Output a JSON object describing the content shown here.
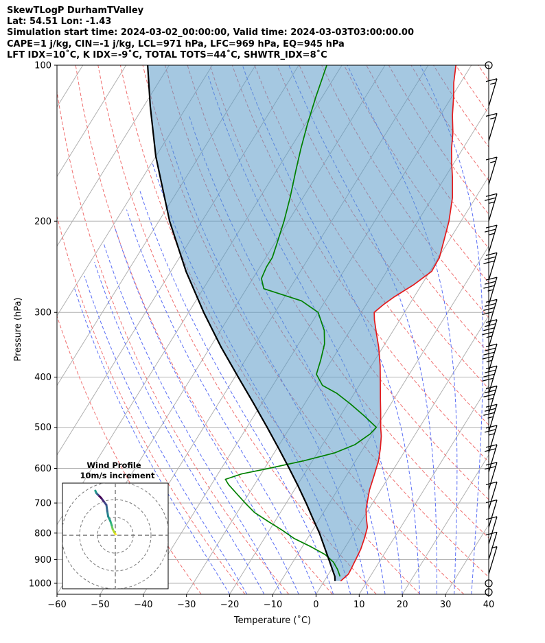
{
  "header": {
    "line1": "SkewTLogP DurhamTValley",
    "line2": "Lat: 54.51   Lon: -1.43",
    "line3": "Simulation start time: 2024-03-02_00:00:00, Valid time: 2024-03-03T03:00:00.00",
    "line4": "CAPE=1 j/kg, CIN=-1 j/kg, LCL=971 hPa, LFC=969 hPa, EQ=945 hPa",
    "line5": "LFT IDX=10˚C, K IDX=-9˚C, TOTAL TOTS=44˚C, SHWTR_IDX=8˚C"
  },
  "chart_data": {
    "type": "skewt",
    "xlabel": "Temperature (˚C)",
    "ylabel": "Pressure (hPa)",
    "xlim": [
      -60,
      40
    ],
    "ylim": [
      1050,
      100
    ],
    "x_ticks": [
      -60,
      -50,
      -40,
      -30,
      -20,
      -10,
      0,
      10,
      20,
      30,
      40
    ],
    "x_tick_labels": [
      "−60",
      "−50",
      "−40",
      "−30",
      "−20",
      "−10",
      "0",
      "10",
      "20",
      "30",
      "40"
    ],
    "y_ticks": [
      100,
      200,
      300,
      400,
      500,
      600,
      700,
      800,
      900,
      1000
    ],
    "y_tick_labels": [
      "100",
      "200",
      "300",
      "400",
      "500",
      "600",
      "700",
      "800",
      "900",
      "1000"
    ],
    "series": [
      {
        "name": "Temperature",
        "color": "#e41a1c",
        "points": [
          [
            990,
            3.8
          ],
          [
            960,
            4.6
          ],
          [
            940,
            4.5
          ],
          [
            900,
            4.2
          ],
          [
            860,
            3.9
          ],
          [
            820,
            3.2
          ],
          [
            780,
            2.3
          ],
          [
            750,
            0.8
          ],
          [
            720,
            -0.6
          ],
          [
            690,
            -1.6
          ],
          [
            660,
            -2.6
          ],
          [
            620,
            -3.6
          ],
          [
            580,
            -4.7
          ],
          [
            550,
            -6.0
          ],
          [
            520,
            -7.6
          ],
          [
            500,
            -9.0
          ],
          [
            470,
            -11.0
          ],
          [
            440,
            -13.2
          ],
          [
            410,
            -15.5
          ],
          [
            380,
            -18.0
          ],
          [
            350,
            -21.0
          ],
          [
            330,
            -23.4
          ],
          [
            310,
            -25.9
          ],
          [
            300,
            -27.0
          ],
          [
            290,
            -26.0
          ],
          [
            280,
            -24.6
          ],
          [
            265,
            -21.8
          ],
          [
            250,
            -19.6
          ],
          [
            235,
            -19.8
          ],
          [
            220,
            -21.0
          ],
          [
            200,
            -22.8
          ],
          [
            180,
            -25.4
          ],
          [
            165,
            -28.2
          ],
          [
            155,
            -30.4
          ],
          [
            145,
            -32.6
          ],
          [
            135,
            -34.6
          ],
          [
            125,
            -37.2
          ],
          [
            115,
            -39.6
          ],
          [
            108,
            -41.6
          ],
          [
            100,
            -43.6
          ]
        ]
      },
      {
        "name": "Dewpoint",
        "color": "#008000",
        "points": [
          [
            970,
            3.0
          ],
          [
            940,
            1.4
          ],
          [
            910,
            -0.6
          ],
          [
            880,
            -3.6
          ],
          [
            850,
            -8.0
          ],
          [
            820,
            -13.0
          ],
          [
            790,
            -17.0
          ],
          [
            760,
            -21.5
          ],
          [
            730,
            -26.0
          ],
          [
            700,
            -29.5
          ],
          [
            670,
            -33.0
          ],
          [
            645,
            -36.0
          ],
          [
            630,
            -37.5
          ],
          [
            615,
            -34.5
          ],
          [
            600,
            -29.0
          ],
          [
            580,
            -22.0
          ],
          [
            560,
            -16.0
          ],
          [
            540,
            -12.5
          ],
          [
            515,
            -10.5
          ],
          [
            500,
            -10.0
          ],
          [
            475,
            -14.5
          ],
          [
            450,
            -19.5
          ],
          [
            430,
            -24.0
          ],
          [
            415,
            -28.5
          ],
          [
            395,
            -31.5
          ],
          [
            370,
            -32.6
          ],
          [
            345,
            -34.0
          ],
          [
            325,
            -36.0
          ],
          [
            300,
            -40.0
          ],
          [
            285,
            -45.5
          ],
          [
            270,
            -56.0
          ],
          [
            258,
            -58.0
          ],
          [
            245,
            -58.5
          ],
          [
            235,
            -58.5
          ],
          [
            220,
            -59.5
          ],
          [
            200,
            -61.0
          ],
          [
            180,
            -63.0
          ],
          [
            160,
            -65.5
          ],
          [
            145,
            -67.5
          ],
          [
            130,
            -69.5
          ],
          [
            115,
            -71.5
          ],
          [
            100,
            -73.5
          ]
        ]
      },
      {
        "name": "Parcel",
        "color": "#000000",
        "points": [
          [
            990,
            2.5
          ],
          [
            970,
            1.8
          ],
          [
            940,
            0.2
          ],
          [
            900,
            -2.0
          ],
          [
            850,
            -4.9
          ],
          [
            800,
            -8.0
          ],
          [
            750,
            -11.6
          ],
          [
            700,
            -15.4
          ],
          [
            650,
            -19.6
          ],
          [
            600,
            -24.3
          ],
          [
            550,
            -29.5
          ],
          [
            500,
            -35.3
          ],
          [
            450,
            -41.8
          ],
          [
            400,
            -49.2
          ],
          [
            350,
            -57.5
          ],
          [
            300,
            -66.5
          ],
          [
            250,
            -76.5
          ],
          [
            200,
            -87.5
          ],
          [
            150,
            -100.0
          ],
          [
            120,
            -108.5
          ],
          [
            100,
            -115.0
          ]
        ]
      }
    ],
    "cape_cin_shading": {
      "between": [
        "Temperature",
        "Parcel"
      ],
      "color": "#5b9ac8"
    },
    "wind_barbs": [
      {
        "p": 100,
        "speed_kt": 0
      },
      {
        "p": 120,
        "speed_kt": 15
      },
      {
        "p": 140,
        "speed_kt": 15
      },
      {
        "p": 170,
        "speed_kt": 15
      },
      {
        "p": 200,
        "speed_kt": 25
      },
      {
        "p": 230,
        "speed_kt": 25
      },
      {
        "p": 260,
        "speed_kt": 30
      },
      {
        "p": 290,
        "speed_kt": 35
      },
      {
        "p": 320,
        "speed_kt": 40
      },
      {
        "p": 350,
        "speed_kt": 45
      },
      {
        "p": 390,
        "speed_kt": 45
      },
      {
        "p": 430,
        "speed_kt": 40
      },
      {
        "p": 470,
        "speed_kt": 35
      },
      {
        "p": 510,
        "speed_kt": 35
      },
      {
        "p": 560,
        "speed_kt": 25
      },
      {
        "p": 610,
        "speed_kt": 20
      },
      {
        "p": 660,
        "speed_kt": 20
      },
      {
        "p": 720,
        "speed_kt": 10
      },
      {
        "p": 780,
        "speed_kt": 10
      },
      {
        "p": 840,
        "speed_kt": 10
      },
      {
        "p": 900,
        "speed_kt": 10
      },
      {
        "p": 960,
        "speed_kt": 5
      },
      {
        "p": 1000,
        "speed_kt": 0
      },
      {
        "p": 1040,
        "speed_kt": 0
      }
    ],
    "hodograph": {
      "title_line1": "Wind Profile",
      "title_line2": "10m/s increment",
      "rings_ms": [
        10,
        20,
        30
      ],
      "u": [
        0.2,
        -0.5,
        -1.5,
        -2.0,
        -2.8,
        -4.0,
        -4.5,
        -5.0,
        -6.5,
        -8.0,
        -9.5,
        -10.5,
        -11.0,
        -11.2
      ],
      "v": [
        0.5,
        1.5,
        3.5,
        5.5,
        8.0,
        10.5,
        13.5,
        17.0,
        19.0,
        21.0,
        22.5,
        23.5,
        24.5,
        25.0
      ]
    }
  }
}
